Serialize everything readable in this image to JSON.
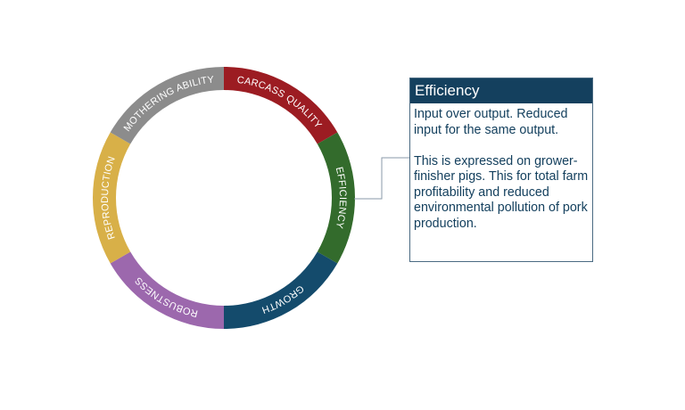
{
  "segments": [
    {
      "label": "CARCASS QUALITY",
      "color": "#9c1c22"
    },
    {
      "label": "EFFICIENCY",
      "color": "#336b2c"
    },
    {
      "label": "GROWTH",
      "color": "#144b6c"
    },
    {
      "label": "ROBUSTNESS",
      "color": "#9c68ad"
    },
    {
      "label": "REPRODUCTION",
      "color": "#d8b048"
    },
    {
      "label": "MOTHERING ABILITY",
      "color": "#8c8c8c"
    }
  ],
  "info": {
    "title": "Efficiency",
    "paragraphs": [
      "Input over output. Reduced input for the same output.",
      "This is expressed on grower-finisher pigs. This for total farm profitability and reduced environmental pollution of pork production."
    ]
  },
  "colors": {
    "header_bg": "#14405e",
    "body_text": "#14405e",
    "box_border": "#4a6a82",
    "connector": "#8a9aa8",
    "segment_text": "#ffffff"
  }
}
